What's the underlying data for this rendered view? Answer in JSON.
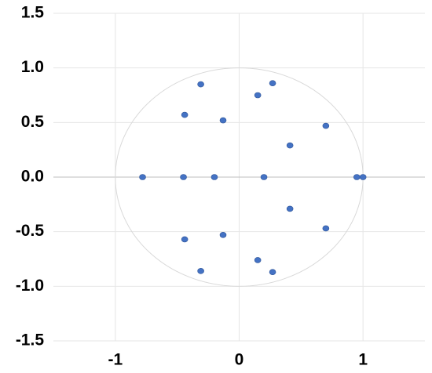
{
  "chart_data": {
    "type": "scatter",
    "x": [
      -0.31,
      0.27,
      0.15,
      -0.44,
      -0.13,
      0.7,
      0.41,
      -0.78,
      -0.45,
      -0.2,
      0.2,
      0.95,
      1.0,
      0.41,
      0.7,
      -0.44,
      -0.13,
      0.15,
      -0.31,
      0.27
    ],
    "values": [
      0.85,
      0.86,
      0.75,
      0.57,
      0.52,
      0.47,
      0.29,
      0,
      0,
      0,
      0,
      0,
      0,
      -0.29,
      -0.47,
      -0.57,
      -0.53,
      -0.76,
      -0.86,
      -0.87
    ],
    "color": "#4472c4",
    "xlim": [
      -1.5,
      1.5
    ],
    "xticks": [
      -1,
      0,
      1
    ],
    "ylim": [
      -1.5,
      1.5
    ],
    "yticks": [
      -1.5,
      {
        "value": -1.0,
        "label": "-1.0"
      },
      -0.5,
      {
        "value": 0,
        "label": "0.0"
      },
      0.5,
      {
        "value": 1.0,
        "label": "1.0"
      },
      1.5
    ],
    "grid": true,
    "reference_circle": {
      "radius": 1,
      "color": "#d9d9d9"
    }
  }
}
